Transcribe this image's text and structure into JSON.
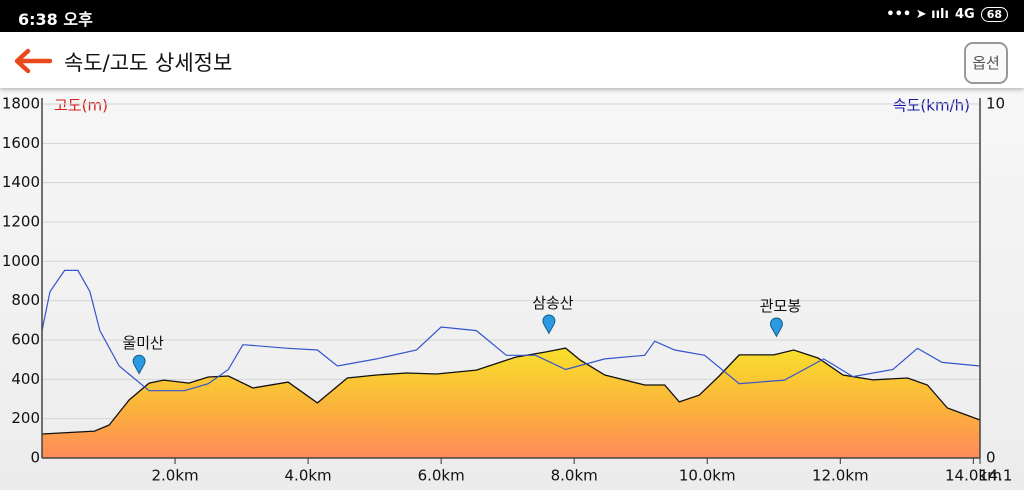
{
  "status_bar": {
    "time": "6:38 오후",
    "network": "4G",
    "battery": "68"
  },
  "header": {
    "title": "속도/고도 상세정보",
    "button": "옵션"
  },
  "chart_data": {
    "type": "area",
    "y_label": "고도(m)",
    "y2_label": "속도(km/h)",
    "xlim": [
      0,
      14.1
    ],
    "xticks": [
      {
        "value": 2,
        "label": "2.0km"
      },
      {
        "value": 4,
        "label": "4.0km"
      },
      {
        "value": 6,
        "label": "6.0km"
      },
      {
        "value": 8,
        "label": "8.0km"
      },
      {
        "value": 10,
        "label": "10.0km"
      },
      {
        "value": 12,
        "label": "12.0km"
      },
      {
        "value": 14,
        "label": "14.0km"
      },
      14.1
    ],
    "ylim": [
      0,
      1800
    ],
    "yticks": [
      0,
      200,
      400,
      600,
      800,
      1000,
      1200,
      1400,
      1600,
      1800
    ],
    "y2lim": [
      0,
      10
    ],
    "y2ticks": [
      0,
      10
    ],
    "grid": true,
    "series": [
      {
        "type": "area",
        "color": "#f5d830",
        "x": [
          0,
          0.79,
          1.01,
          1.31,
          1.61,
          1.83,
          2.21,
          2.5,
          2.8,
          3.17,
          3.7,
          4.14,
          4.59,
          5.03,
          5.48,
          5.93,
          6.53,
          7.12,
          7.57,
          7.87,
          8.09,
          8.46,
          9.06,
          9.36,
          9.58,
          9.88,
          10.18,
          10.48,
          11.0,
          11.3,
          11.67,
          12.04,
          12.49,
          13.01,
          13.31,
          13.61,
          14.1
        ],
        "values": [
          122,
          137,
          168,
          295,
          381,
          396,
          381,
          412,
          417,
          356,
          386,
          280,
          407,
          422,
          432,
          427,
          447,
          513,
          539,
          559,
          498,
          422,
          371,
          371,
          285,
          320,
          417,
          524,
          524,
          549,
          508,
          422,
          397,
          407,
          371,
          254,
          193
        ]
      },
      {
        "type": "line",
        "axis": "y2",
        "color": "#3355cc",
        "x": [
          0,
          0.12,
          0.34,
          0.54,
          0.72,
          0.87,
          1.16,
          1.61,
          2.14,
          2.5,
          2.8,
          3.02,
          3.7,
          4.14,
          4.44,
          5.03,
          5.63,
          6.0,
          6.53,
          6.98,
          7.42,
          7.87,
          8.46,
          9.06,
          9.21,
          9.51,
          9.96,
          10.48,
          11.16,
          11.75,
          12.19,
          12.79,
          13.16,
          13.53,
          14.1
        ],
        "values": [
          3.6,
          4.7,
          5.3,
          5.3,
          4.7,
          3.6,
          2.6,
          1.9,
          1.9,
          2.1,
          2.5,
          3.2,
          3.1,
          3.05,
          2.6,
          2.8,
          3.05,
          3.7,
          3.6,
          2.9,
          2.9,
          2.5,
          2.8,
          2.9,
          3.3,
          3.05,
          2.9,
          2.1,
          2.2,
          2.8,
          2.3,
          2.5,
          3.1,
          2.7,
          2.6
        ]
      }
    ],
    "annotations": [
      {
        "x": 1.46,
        "text": "울미산"
      },
      {
        "x": 7.62,
        "text": "삼송산"
      },
      {
        "x": 11.04,
        "text": "관모봉"
      }
    ]
  }
}
